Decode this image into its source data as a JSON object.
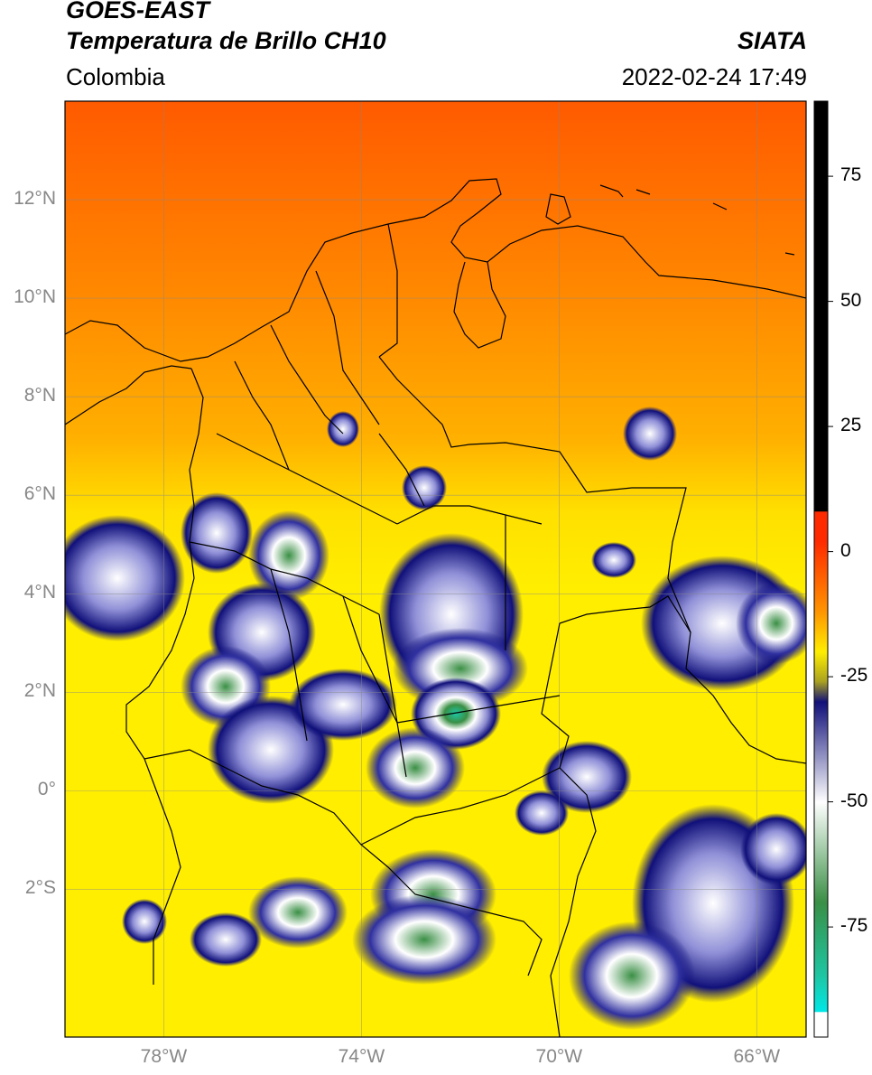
{
  "header": {
    "title_line1": "GOES-EAST",
    "title_line2": "Temperatura de Brillo CH10",
    "brand": "SIATA",
    "region": "Colombia",
    "timestamp": "2022-02-24 17:49"
  },
  "map": {
    "lat_labels": [
      {
        "label": "12°N",
        "lat": 12
      },
      {
        "label": "10°N",
        "lat": 10
      },
      {
        "label": "8°N",
        "lat": 8
      },
      {
        "label": "6°N",
        "lat": 6
      },
      {
        "label": "4°N",
        "lat": 4
      },
      {
        "label": "2°N",
        "lat": 2
      },
      {
        "label": "0°",
        "lat": 0
      },
      {
        "label": "2°S",
        "lat": -2
      }
    ],
    "lon_labels": [
      {
        "label": "78°W",
        "lon": -78
      },
      {
        "label": "74°W",
        "lon": -74
      },
      {
        "label": "70°W",
        "lon": -70
      },
      {
        "label": "66°W",
        "lon": -66
      }
    ],
    "extent": {
      "lon_min": -80,
      "lon_max": -65,
      "lat_min": -5,
      "lat_max": 14
    }
  },
  "colorbar": {
    "ticks": [
      "75",
      "50",
      "25",
      "0",
      "-25",
      "-50",
      "-75"
    ],
    "tick_values": [
      75,
      50,
      25,
      0,
      -25,
      -50,
      -75
    ],
    "range": [
      -97,
      90
    ],
    "colors": {
      "warm_top": "#ff2a00",
      "warm_mid": "#ff9500",
      "yellow": "#ffee00",
      "olive": "#a8a020",
      "navy": "#10107a",
      "white": "#ffffff",
      "green": "#3a8f45",
      "teal": "#1dc7a5",
      "cyan": "#00e8e8",
      "black": "#000000"
    }
  }
}
